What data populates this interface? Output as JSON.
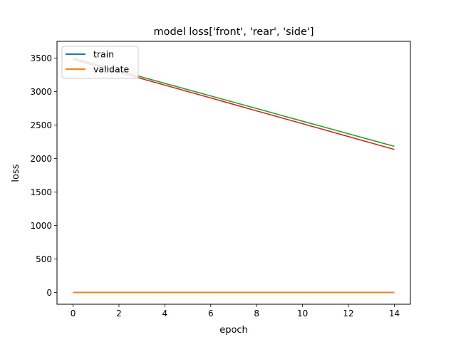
{
  "chart_data": {
    "type": "line",
    "title": "model loss['front', 'rear', 'side']",
    "xlabel": "epoch",
    "ylabel": "loss",
    "xlim": [
      -0.7,
      14.7
    ],
    "ylim": [
      -175,
      3750
    ],
    "xticks": [
      0,
      2,
      4,
      6,
      8,
      10,
      12,
      14
    ],
    "yticks": [
      0,
      500,
      1000,
      1500,
      2000,
      2500,
      3000,
      3500
    ],
    "grid": false,
    "legend_position": "upper-left",
    "legend": [
      "train",
      "validate"
    ],
    "x": [
      0,
      1,
      2,
      3,
      4,
      5,
      6,
      7,
      8,
      9,
      10,
      11,
      12,
      13,
      14
    ],
    "series": [
      {
        "name": "train",
        "color": "#1f77b4",
        "values": [
          1,
          1,
          1,
          1,
          1,
          1,
          1,
          1,
          1,
          1,
          1,
          1,
          1,
          1,
          1
        ]
      },
      {
        "name": "validate",
        "color": "#ff7f0e",
        "values": [
          1,
          1,
          1,
          1,
          1,
          1,
          1,
          1,
          1,
          1,
          1,
          1,
          1,
          1,
          1
        ]
      },
      {
        "color": "#2ca02c",
        "values": [
          3500,
          3406,
          3312,
          3217,
          3123,
          3029,
          2935,
          2841,
          2747,
          2652,
          2558,
          2464,
          2370,
          2276,
          2182
        ]
      },
      {
        "color": "#d62728",
        "values": [
          3480,
          3384,
          3288,
          3192,
          3096,
          3000,
          2904,
          2808,
          2712,
          2616,
          2520,
          2424,
          2328,
          2232,
          2136
        ]
      }
    ]
  }
}
